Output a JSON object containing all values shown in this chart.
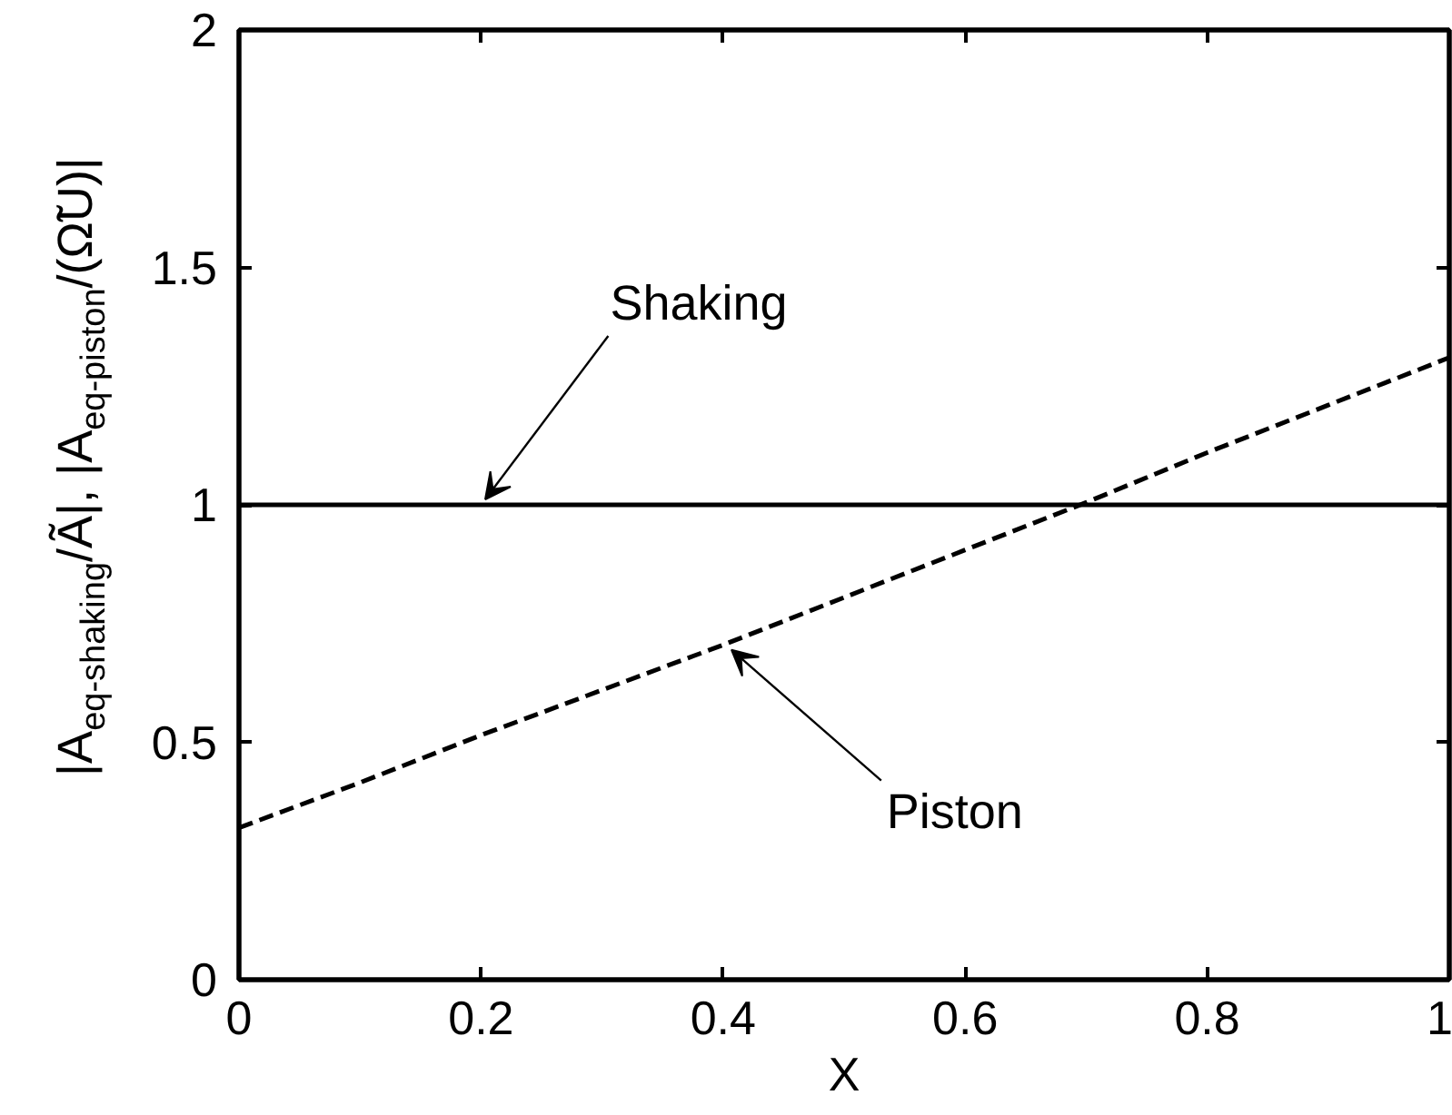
{
  "chart_data": {
    "type": "line",
    "xlabel": "X",
    "ylabel": "|A$_{eq-shaking}$/Ã|, |A$_{eq-piston}$/(Ω̃U)|",
    "x": [
      0,
      0.1,
      0.2,
      0.3,
      0.4,
      0.5,
      0.6,
      0.7,
      0.8,
      0.9,
      1
    ],
    "series": [
      {
        "color": "#000000",
        "x": [
          0,
          1
        ],
        "values": [
          1,
          1
        ],
        "line_style": "solid"
      },
      {
        "color": "#000000",
        "values": [
          0.32,
          0.415,
          0.515,
          0.61,
          0.705,
          0.805,
          0.905,
          1.005,
          1.11,
          1.21,
          1.31
        ],
        "line_style": "dashed"
      }
    ],
    "xlim": [
      0,
      1
    ],
    "ylim": [
      0,
      2
    ],
    "xticks": [
      0,
      0.2,
      0.4,
      0.6,
      0.8,
      1
    ],
    "yticks": [
      0,
      0.5,
      1,
      1.5,
      2
    ],
    "grid": false,
    "annotations": [
      {
        "text": "Shaking",
        "x": 0.2,
        "y": 1
      },
      {
        "text": "Piston",
        "x": 0.4,
        "y": 0.71
      }
    ]
  }
}
